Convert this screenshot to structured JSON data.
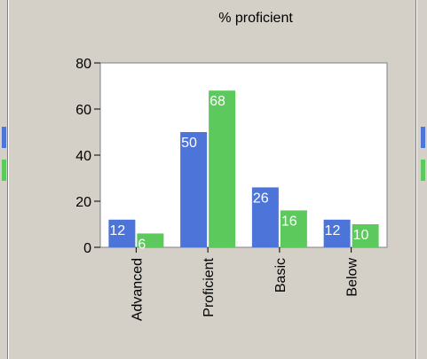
{
  "colors": {
    "background": "#d4d0c8",
    "plot_bg": "#ffffff",
    "series_blue": "#4c74d9",
    "series_green": "#5cc95c"
  },
  "chart_data": {
    "type": "bar",
    "title": "% proficient",
    "xlabel": "",
    "ylabel": "",
    "categories": [
      "Advanced",
      "Proficient",
      "Basic",
      "Below"
    ],
    "series": [
      {
        "values": [
          12,
          50,
          26,
          12
        ],
        "color": "#4c74d9"
      },
      {
        "values": [
          6,
          68,
          16,
          10
        ],
        "color": "#5cc95c"
      }
    ],
    "ylim": [
      0,
      80
    ],
    "yticks": [
      0,
      20,
      40,
      60,
      80
    ],
    "grid": false,
    "legend": "none"
  }
}
